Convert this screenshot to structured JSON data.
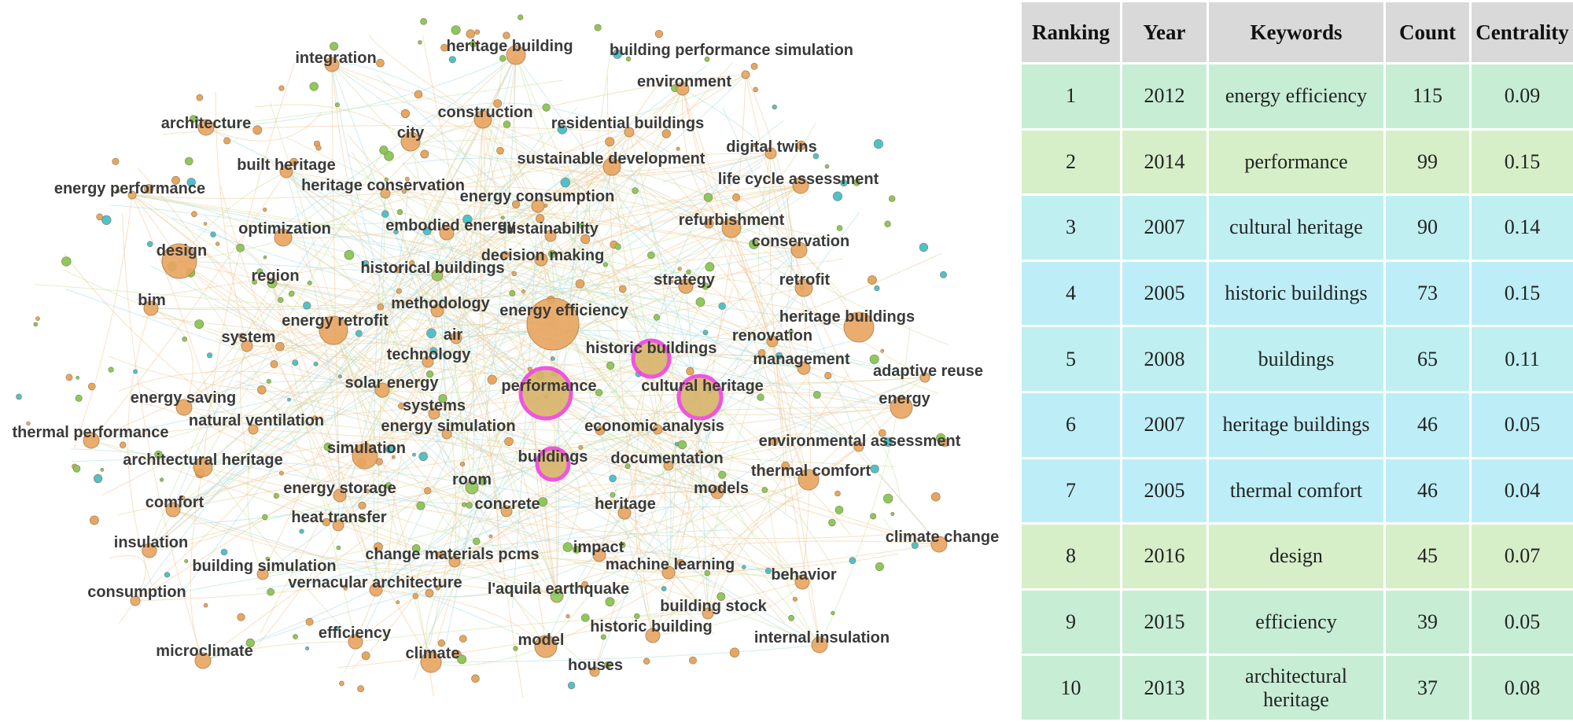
{
  "network": {
    "keywords": [
      "heritage building",
      "building performance simulation",
      "integration",
      "environment",
      "construction",
      "residential buildings",
      "architecture",
      "city",
      "digital twins",
      "sustainable development",
      "built heritage",
      "life cycle assessment",
      "heritage conservation",
      "energy performance",
      "energy consumption",
      "refurbishment",
      "embodied energy",
      "optimization",
      "sustainability",
      "conservation",
      "design",
      "decision making",
      "region",
      "historical buildings",
      "strategy",
      "retrofit",
      "bim",
      "methodology",
      "energy efficiency",
      "heritage buildings",
      "energy retrofit",
      "air",
      "system",
      "renovation",
      "historic buildings",
      "technology",
      "management",
      "adaptive reuse",
      "solar energy",
      "performance",
      "cultural heritage",
      "energy saving",
      "systems",
      "energy",
      "natural ventilation",
      "thermal performance",
      "energy simulation",
      "economic analysis",
      "environmental assessment",
      "simulation",
      "architectural heritage",
      "buildings",
      "documentation",
      "thermal comfort",
      "room",
      "energy storage",
      "models",
      "comfort",
      "concrete",
      "heritage",
      "heat transfer",
      "climate change",
      "insulation",
      "change materials pcms",
      "impact",
      "machine learning",
      "building simulation",
      "behavior",
      "vernacular architecture",
      "l'aquila earthquake",
      "consumption",
      "building stock",
      "historic building",
      "efficiency",
      "model",
      "internal insulation",
      "microclimate",
      "climate",
      "houses"
    ],
    "highlighted": [
      "performance",
      "cultural heritage",
      "historic buildings",
      "buildings"
    ],
    "colors": {
      "orange": "#e8a560",
      "green": "#8cc85a",
      "cyan": "#4fc1cc",
      "highlight_ring": "#ee44dd",
      "edge_orange": "#f0c896",
      "edge_green": "#c9e3a0",
      "edge_cyan": "#a7dde0"
    }
  },
  "table": {
    "headers": [
      "Ranking",
      "Year",
      "Keywords",
      "Count",
      "Centrality"
    ],
    "rows": [
      {
        "ranking": "1",
        "year": "2012",
        "keyword": "energy efficiency",
        "count": "115",
        "centrality": "0.09",
        "color": "#c7eed5"
      },
      {
        "ranking": "2",
        "year": "2014",
        "keyword": "performance",
        "count": "99",
        "centrality": "0.15",
        "color": "#d6efc9"
      },
      {
        "ranking": "3",
        "year": "2007",
        "keyword": "cultural heritage",
        "count": "90",
        "centrality": "0.14",
        "color": "#bfeff1"
      },
      {
        "ranking": "4",
        "year": "2005",
        "keyword": "historic buildings",
        "count": "73",
        "centrality": "0.15",
        "color": "#bdeef8"
      },
      {
        "ranking": "5",
        "year": "2008",
        "keyword": "buildings",
        "count": "65",
        "centrality": "0.11",
        "color": "#bfeff1"
      },
      {
        "ranking": "6",
        "year": "2007",
        "keyword": "heritage buildings",
        "count": "46",
        "centrality": "0.05",
        "color": "#bdeef8"
      },
      {
        "ranking": "7",
        "year": "2005",
        "keyword": "thermal comfort",
        "count": "46",
        "centrality": "0.04",
        "color": "#bdeef8"
      },
      {
        "ranking": "8",
        "year": "2016",
        "keyword": "design",
        "count": "45",
        "centrality": "0.07",
        "color": "#d6efc9"
      },
      {
        "ranking": "9",
        "year": "2015",
        "keyword": "efficiency",
        "count": "39",
        "centrality": "0.05",
        "color": "#c7eed5"
      },
      {
        "ranking": "10",
        "year": "2013",
        "keyword": "architectural heritage",
        "count": "37",
        "centrality": "0.08",
        "color": "#c7eed5"
      }
    ]
  }
}
